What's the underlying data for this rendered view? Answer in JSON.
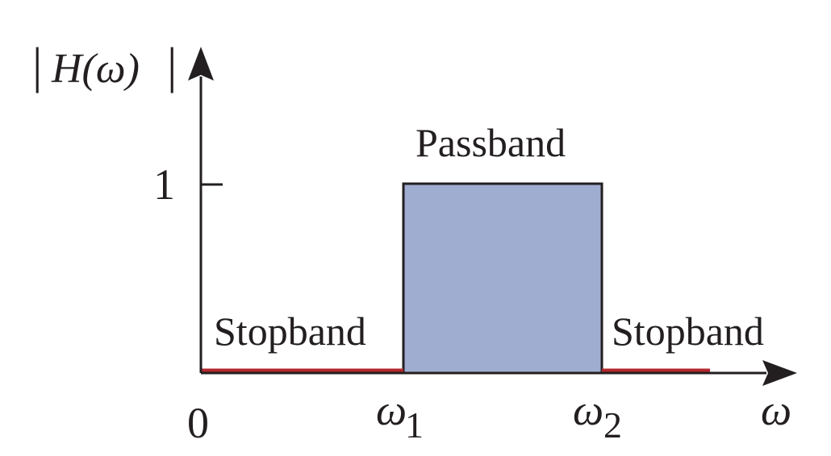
{
  "diagram": {
    "y_axis_label": {
      "bar": "|",
      "main": "H(ω)",
      "bar_end": "|"
    },
    "x_axis_label": "ω",
    "tick_one": "1",
    "origin": "0",
    "omega1": {
      "symbol": "ω",
      "sub": "1"
    },
    "omega2": {
      "symbol": "ω",
      "sub": "2"
    },
    "passband_label": "Passband",
    "stopband_left_label": "Stopband",
    "stopband_right_label": "Stopband",
    "colors": {
      "passband_fill": "#9fadd0",
      "stopband_line": "#b3282d",
      "axis": "#231f20"
    }
  }
}
